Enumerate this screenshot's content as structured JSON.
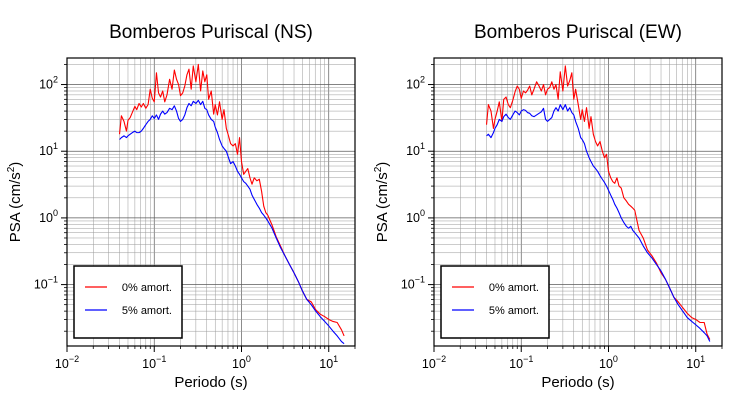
{
  "chart_data": [
    {
      "type": "line",
      "title": "Bomberos Puriscal (NS)",
      "xlabel": "Periodo (s)",
      "ylabel": "PSA (cm/s²)",
      "xscale": "log",
      "yscale": "log",
      "xlim": [
        0.01,
        20
      ],
      "ylim": [
        0.012,
        250
      ],
      "grid": true,
      "legend_placement": "bottom-left",
      "xticks": [
        {
          "value": 0.01,
          "base": "10",
          "exp": "−2"
        },
        {
          "value": 0.1,
          "base": "10",
          "exp": "−1"
        },
        {
          "value": 1,
          "base": "10",
          "exp": "0"
        },
        {
          "value": 10,
          "base": "10",
          "exp": "1"
        }
      ],
      "yticks": [
        {
          "value": 0.1,
          "base": "10",
          "exp": "−1"
        },
        {
          "value": 1,
          "base": "10",
          "exp": "0"
        },
        {
          "value": 10,
          "base": "10",
          "exp": "1"
        },
        {
          "value": 100,
          "base": "10",
          "exp": "2"
        }
      ],
      "series": [
        {
          "name": "0% amort.",
          "color": "#ff0000",
          "x": [
            0.04,
            0.042,
            0.045,
            0.048,
            0.05,
            0.053,
            0.056,
            0.06,
            0.063,
            0.067,
            0.071,
            0.075,
            0.08,
            0.085,
            0.09,
            0.095,
            0.1,
            0.106,
            0.112,
            0.118,
            0.125,
            0.132,
            0.14,
            0.15,
            0.16,
            0.17,
            0.18,
            0.19,
            0.2,
            0.212,
            0.224,
            0.237,
            0.25,
            0.265,
            0.28,
            0.3,
            0.32,
            0.34,
            0.36,
            0.38,
            0.4,
            0.42,
            0.45,
            0.48,
            0.5,
            0.53,
            0.56,
            0.6,
            0.63,
            0.67,
            0.71,
            0.75,
            0.8,
            0.85,
            0.9,
            0.95,
            1.0,
            1.06,
            1.12,
            1.18,
            1.25,
            1.32,
            1.4,
            1.5,
            1.6,
            1.7,
            1.8,
            1.9,
            2.0,
            2.24,
            2.5,
            2.8,
            3.15,
            3.55,
            4.0,
            4.5,
            5.0,
            5.6,
            6.3,
            7.1,
            8.0,
            9.0,
            10.0,
            11.2,
            12.5,
            14.0,
            15.0
          ],
          "values": [
            18,
            34,
            28,
            20,
            29,
            32,
            38,
            47,
            42,
            52,
            46,
            52,
            44,
            50,
            85,
            62,
            55,
            150,
            75,
            65,
            80,
            55,
            70,
            120,
            85,
            165,
            120,
            100,
            68,
            75,
            95,
            140,
            170,
            85,
            190,
            110,
            200,
            80,
            160,
            110,
            140,
            60,
            80,
            36,
            50,
            35,
            55,
            30,
            42,
            22,
            17,
            13,
            12,
            13,
            9,
            16,
            7,
            4.5,
            5,
            5.5,
            4,
            3.2,
            4,
            3.6,
            3.8,
            2.5,
            1.5,
            1.2,
            1.1,
            0.78,
            0.52,
            0.38,
            0.27,
            0.2,
            0.15,
            0.11,
            0.08,
            0.06,
            0.055,
            0.042,
            0.036,
            0.033,
            0.03,
            0.028,
            0.027,
            0.021,
            0.017
          ]
        },
        {
          "name": "5% amort.",
          "color": "#0000ff",
          "x": [
            0.04,
            0.042,
            0.045,
            0.048,
            0.05,
            0.053,
            0.056,
            0.06,
            0.063,
            0.067,
            0.071,
            0.075,
            0.08,
            0.085,
            0.09,
            0.095,
            0.1,
            0.106,
            0.112,
            0.118,
            0.125,
            0.132,
            0.14,
            0.15,
            0.16,
            0.17,
            0.18,
            0.19,
            0.2,
            0.212,
            0.224,
            0.237,
            0.25,
            0.265,
            0.28,
            0.3,
            0.32,
            0.34,
            0.36,
            0.38,
            0.4,
            0.42,
            0.45,
            0.48,
            0.5,
            0.53,
            0.56,
            0.6,
            0.63,
            0.67,
            0.71,
            0.75,
            0.8,
            0.85,
            0.9,
            0.95,
            1.0,
            1.06,
            1.12,
            1.18,
            1.25,
            1.32,
            1.4,
            1.5,
            1.6,
            1.7,
            1.8,
            1.9,
            2.0,
            2.24,
            2.5,
            2.8,
            3.15,
            3.55,
            4.0,
            4.5,
            5.0,
            5.6,
            6.3,
            7.1,
            8.0,
            9.0,
            10.0,
            11.2,
            12.5,
            14.0,
            15.0
          ],
          "values": [
            15,
            16,
            17,
            16,
            17,
            18,
            19,
            20,
            19,
            19,
            20,
            22,
            25,
            28,
            30,
            34,
            31,
            35,
            30,
            36,
            40,
            36,
            38,
            44,
            42,
            48,
            40,
            31,
            28,
            30,
            35,
            45,
            52,
            48,
            56,
            52,
            58,
            50,
            56,
            44,
            42,
            35,
            30,
            28,
            23,
            19,
            15,
            12,
            11,
            10,
            8,
            6.5,
            7,
            6,
            5,
            4.5,
            4,
            3.5,
            3.3,
            3,
            2.7,
            2.2,
            1.9,
            1.6,
            1.4,
            1.2,
            1.1,
            1.0,
            0.9,
            0.7,
            0.5,
            0.36,
            0.27,
            0.2,
            0.15,
            0.11,
            0.08,
            0.06,
            0.05,
            0.04,
            0.033,
            0.028,
            0.024,
            0.02,
            0.017,
            0.014,
            0.013
          ]
        }
      ]
    },
    {
      "type": "line",
      "title": "Bomberos Puriscal (EW)",
      "xlabel": "Periodo (s)",
      "ylabel": "PSA (cm/s²)",
      "xscale": "log",
      "yscale": "log",
      "xlim": [
        0.01,
        20
      ],
      "ylim": [
        0.012,
        250
      ],
      "grid": true,
      "legend_placement": "bottom-left",
      "xticks": [
        {
          "value": 0.01,
          "base": "10",
          "exp": "−2"
        },
        {
          "value": 0.1,
          "base": "10",
          "exp": "−1"
        },
        {
          "value": 1,
          "base": "10",
          "exp": "0"
        },
        {
          "value": 10,
          "base": "10",
          "exp": "1"
        }
      ],
      "yticks": [
        {
          "value": 0.1,
          "base": "10",
          "exp": "−1"
        },
        {
          "value": 1,
          "base": "10",
          "exp": "0"
        },
        {
          "value": 10,
          "base": "10",
          "exp": "1"
        },
        {
          "value": 100,
          "base": "10",
          "exp": "2"
        }
      ],
      "series": [
        {
          "name": "0% amort.",
          "color": "#ff0000",
          "x": [
            0.04,
            0.042,
            0.045,
            0.048,
            0.05,
            0.053,
            0.056,
            0.06,
            0.063,
            0.067,
            0.071,
            0.075,
            0.08,
            0.085,
            0.09,
            0.095,
            0.1,
            0.106,
            0.112,
            0.118,
            0.125,
            0.132,
            0.14,
            0.15,
            0.16,
            0.17,
            0.18,
            0.19,
            0.2,
            0.212,
            0.224,
            0.237,
            0.25,
            0.265,
            0.28,
            0.3,
            0.32,
            0.34,
            0.36,
            0.38,
            0.4,
            0.42,
            0.45,
            0.48,
            0.5,
            0.53,
            0.56,
            0.6,
            0.63,
            0.67,
            0.71,
            0.75,
            0.8,
            0.85,
            0.9,
            0.95,
            1.0,
            1.06,
            1.12,
            1.18,
            1.25,
            1.32,
            1.4,
            1.5,
            1.6,
            1.7,
            1.8,
            1.9,
            2.0,
            2.24,
            2.5,
            2.8,
            3.15,
            3.55,
            4.0,
            4.5,
            5.0,
            5.6,
            6.3,
            7.1,
            8.0,
            9.0,
            10.0,
            11.2,
            12.5,
            13.5,
            14.5
          ],
          "values": [
            25,
            50,
            40,
            22,
            30,
            40,
            55,
            28,
            60,
            65,
            50,
            45,
            58,
            78,
            95,
            85,
            62,
            80,
            75,
            82,
            95,
            70,
            85,
            110,
            95,
            80,
            100,
            70,
            85,
            90,
            110,
            85,
            100,
            60,
            155,
            80,
            190,
            95,
            115,
            150,
            60,
            85,
            50,
            30,
            42,
            28,
            45,
            22,
            33,
            18,
            14,
            12,
            14,
            10,
            8,
            9,
            5,
            4,
            3.5,
            3.3,
            4,
            3,
            2.8,
            2,
            1.8,
            1.6,
            1.5,
            1.4,
            1.3,
            0.65,
            0.5,
            0.33,
            0.27,
            0.21,
            0.15,
            0.12,
            0.09,
            0.065,
            0.055,
            0.045,
            0.037,
            0.032,
            0.03,
            0.027,
            0.027,
            0.018,
            0.015
          ]
        },
        {
          "name": "5% amort.",
          "color": "#0000ff",
          "x": [
            0.04,
            0.042,
            0.045,
            0.048,
            0.05,
            0.053,
            0.056,
            0.06,
            0.063,
            0.067,
            0.071,
            0.075,
            0.08,
            0.085,
            0.09,
            0.095,
            0.1,
            0.106,
            0.112,
            0.118,
            0.125,
            0.132,
            0.14,
            0.15,
            0.16,
            0.17,
            0.18,
            0.19,
            0.2,
            0.212,
            0.224,
            0.237,
            0.25,
            0.265,
            0.28,
            0.3,
            0.32,
            0.34,
            0.36,
            0.38,
            0.4,
            0.42,
            0.45,
            0.48,
            0.5,
            0.53,
            0.56,
            0.6,
            0.63,
            0.67,
            0.71,
            0.75,
            0.8,
            0.85,
            0.9,
            0.95,
            1.0,
            1.06,
            1.12,
            1.18,
            1.25,
            1.32,
            1.4,
            1.5,
            1.6,
            1.7,
            1.8,
            1.9,
            2.0,
            2.24,
            2.5,
            2.8,
            3.15,
            3.55,
            4.0,
            4.5,
            5.0,
            5.6,
            6.3,
            7.1,
            8.0,
            9.0,
            10.0,
            11.2,
            12.5,
            13.5,
            14.5
          ],
          "values": [
            17,
            18,
            16,
            19,
            22,
            25,
            30,
            28,
            33,
            36,
            32,
            30,
            35,
            40,
            38,
            35,
            40,
            42,
            41,
            38,
            37,
            34,
            33,
            35,
            37,
            39,
            44,
            30,
            28,
            30,
            32,
            40,
            45,
            40,
            50,
            42,
            50,
            40,
            45,
            38,
            35,
            28,
            22,
            16,
            15,
            13,
            10,
            8,
            7,
            6,
            5.5,
            5,
            4.3,
            3.8,
            3.4,
            3,
            2.6,
            2.2,
            1.9,
            1.6,
            1.4,
            1.2,
            1.0,
            0.85,
            0.75,
            0.7,
            0.75,
            0.65,
            0.6,
            0.5,
            0.38,
            0.3,
            0.25,
            0.2,
            0.16,
            0.12,
            0.09,
            0.065,
            0.05,
            0.04,
            0.032,
            0.028,
            0.025,
            0.022,
            0.019,
            0.017,
            0.014
          ]
        }
      ]
    }
  ]
}
